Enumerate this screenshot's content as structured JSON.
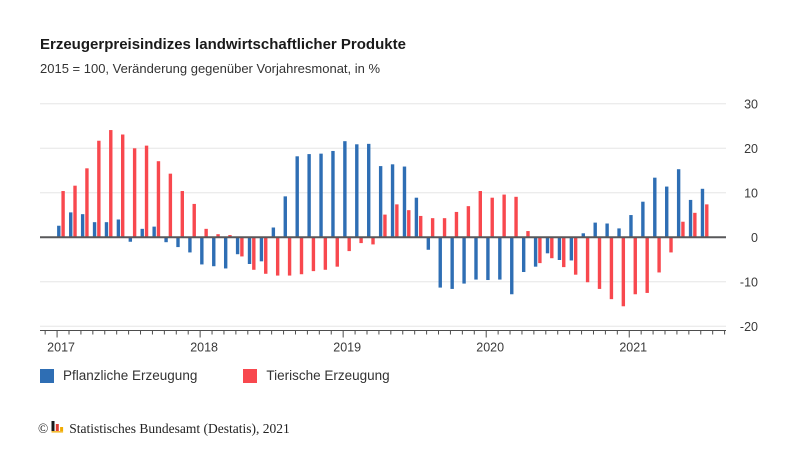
{
  "header": {
    "title": "Erzeugerpreisindizes landwirtschaftlicher Produkte",
    "subtitle": "2015 = 100, Veränderung gegenüber Vorjahresmonat, in %"
  },
  "legend": [
    {
      "label": "Pflanzliche Erzeugung",
      "color": "#2E6EB4"
    },
    {
      "label": "Tierische Erzeugung",
      "color": "#F8484E"
    }
  ],
  "footer": {
    "copyright_symbol": "©",
    "text": "Statistisches Bundesamt (Destatis), 2021",
    "logo_icon": "destatis-bars-icon",
    "logo_colors": [
      "#1a1a1a",
      "#e03c31",
      "#f0ab00"
    ]
  },
  "axes": {
    "y_tick_labels": [
      "30",
      "20",
      "10",
      "0",
      "-10",
      "-20"
    ],
    "x_year_labels": [
      "2017",
      "2018",
      "2019",
      "2020",
      "2021"
    ]
  },
  "chart_data": {
    "type": "bar",
    "title": "Erzeugerpreisindizes landwirtschaftlicher Produkte",
    "subtitle": "2015 = 100, Veränderung gegenüber Vorjahresmonat, in %",
    "xlabel": "",
    "ylabel": "Veränderung gegenüber Vorjahresmonat in %",
    "ylim": [
      -20,
      30
    ],
    "yticks": [
      30,
      20,
      10,
      0,
      -10,
      -20
    ],
    "grid": true,
    "legend_position": "bottom",
    "x": [
      "2017-01",
      "2017-02",
      "2017-03",
      "2017-04",
      "2017-05",
      "2017-06",
      "2017-07",
      "2017-08",
      "2017-09",
      "2017-10",
      "2017-11",
      "2017-12",
      "2018-01",
      "2018-02",
      "2018-03",
      "2018-04",
      "2018-05",
      "2018-06",
      "2018-07",
      "2018-08",
      "2018-09",
      "2018-10",
      "2018-11",
      "2018-12",
      "2019-01",
      "2019-02",
      "2019-03",
      "2019-04",
      "2019-05",
      "2019-06",
      "2019-07",
      "2019-08",
      "2019-09",
      "2019-10",
      "2019-11",
      "2019-12",
      "2020-01",
      "2020-02",
      "2020-03",
      "2020-04",
      "2020-05",
      "2020-06",
      "2020-07",
      "2020-08",
      "2020-09",
      "2020-10",
      "2020-11",
      "2020-12",
      "2021-01",
      "2021-02",
      "2021-03",
      "2021-04",
      "2021-05",
      "2021-06",
      "2021-07"
    ],
    "x_tick_years": [
      "2017",
      "2018",
      "2019",
      "2020",
      "2021"
    ],
    "series": [
      {
        "name": "Pflanzliche Erzeugung",
        "color": "#2E6EB4",
        "values": [
          2.6,
          5.6,
          5.2,
          3.4,
          3.4,
          4.0,
          -1.0,
          1.9,
          2.4,
          -1.1,
          -2.2,
          -3.4,
          -6.1,
          -6.5,
          -7.0,
          -3.8,
          -6.0,
          -5.4,
          2.2,
          9.2,
          18.2,
          18.7,
          18.8,
          19.4,
          21.6,
          20.9,
          21.0,
          16.0,
          16.4,
          15.9,
          8.9,
          -2.8,
          -11.3,
          -11.6,
          -10.4,
          -9.5,
          -9.6,
          -9.5,
          -12.8,
          -7.8,
          -6.6,
          -3.6,
          -5.1,
          -5.2,
          0.9,
          3.3,
          3.1,
          2.0,
          5.0,
          8.0,
          13.4,
          11.4,
          15.3,
          8.4,
          10.9
        ]
      },
      {
        "name": "Tierische Erzeugung",
        "color": "#F8484E",
        "values": [
          10.4,
          11.6,
          15.5,
          21.7,
          24.1,
          23.1,
          20.0,
          20.6,
          17.1,
          14.3,
          10.4,
          7.5,
          1.9,
          0.7,
          0.5,
          -4.3,
          -7.3,
          -8.2,
          -8.6,
          -8.6,
          -8.3,
          -7.6,
          -7.3,
          -6.6,
          -3.1,
          -1.3,
          -1.6,
          5.1,
          7.4,
          6.1,
          4.8,
          4.3,
          4.3,
          5.7,
          7.0,
          10.4,
          8.9,
          9.6,
          9.1,
          1.4,
          -5.8,
          -4.7,
          -6.7,
          -8.4,
          -10.1,
          -11.6,
          -13.9,
          -15.5,
          -12.8,
          -12.5,
          -7.9,
          -3.4,
          3.5,
          5.5,
          7.4
        ]
      }
    ]
  },
  "style": {
    "grid_color": "#e5e5e5",
    "zero_line_color": "#58585a",
    "axis_color": "#4d4d4d",
    "tick_label_color": "#3a3a3a"
  }
}
